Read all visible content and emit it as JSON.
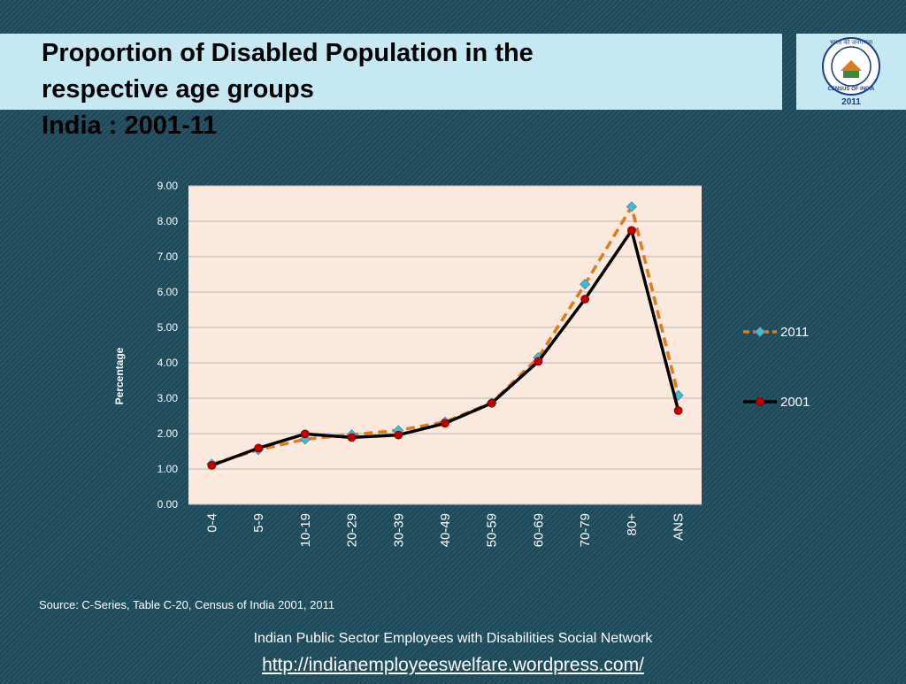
{
  "slide": {
    "title_line1": "Proportion of Disabled Population in the",
    "title_line2": "respective age groups",
    "subtitle": "India : 2001-11",
    "source": "Source: C-Series, Table C-20, Census of India  2001, 2011",
    "footer_text": "Indian Public Sector Employees with Disabilities Social Network",
    "footer_link": "http://indianemployeeswelfare.wordpress.com/"
  },
  "logo": {
    "top_text": "भारत की जनगणना",
    "ring_text": "CENSUS OF INDIA",
    "year": "2011"
  },
  "colors": {
    "background": "#1d4a5a",
    "title_band": "#c6e8f3",
    "plot_area": "#fce9dd",
    "series_2011_line": "#e07a1f",
    "series_2011_marker": "#4bb8cc",
    "series_2001_line": "#000000",
    "series_2001_marker": "#c00000"
  },
  "chart_data": {
    "type": "line",
    "title": "",
    "xlabel": "",
    "ylabel": "Percentage",
    "categories": [
      "0-4",
      "5-9",
      "10-19",
      "20-29",
      "30-39",
      "40-49",
      "50-59",
      "60-69",
      "70-79",
      "80+",
      "ANS"
    ],
    "ylim": [
      0,
      9
    ],
    "yticks": [
      "0.00",
      "1.00",
      "2.00",
      "3.00",
      "4.00",
      "5.00",
      "6.00",
      "7.00",
      "8.00",
      "9.00"
    ],
    "grid": true,
    "legend_position": "right",
    "series": [
      {
        "name": "2011",
        "values": [
          1.14,
          1.54,
          1.84,
          1.97,
          2.09,
          2.33,
          2.87,
          4.15,
          6.22,
          8.41,
          3.08
        ],
        "style": "dashed",
        "marker": "diamond"
      },
      {
        "name": "2001",
        "values": [
          1.1,
          1.59,
          1.99,
          1.89,
          1.96,
          2.29,
          2.86,
          4.04,
          5.8,
          7.74,
          2.65
        ],
        "style": "solid",
        "marker": "circle"
      }
    ]
  }
}
